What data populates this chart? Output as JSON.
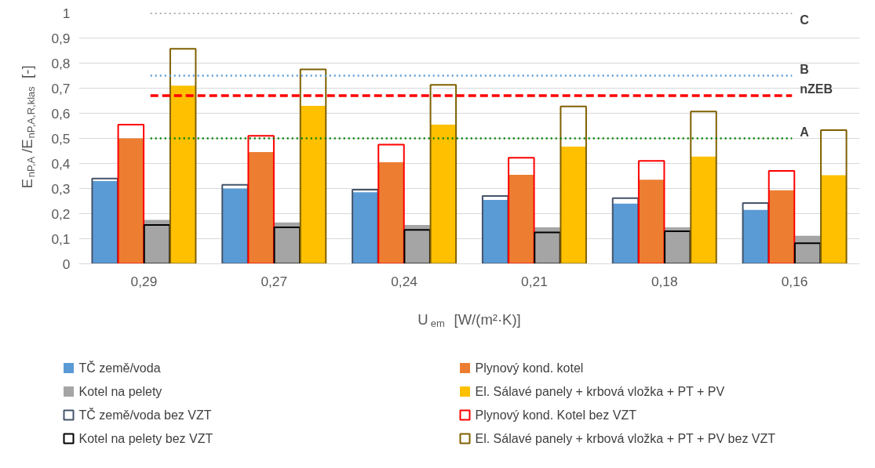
{
  "chart_data": {
    "type": "bar",
    "xlabel": "U$_{em}$ [W/(m²·K)]",
    "ylabel": "E$_{nP,A}$/E$_{nP,A,R,klas}$ [-]",
    "categories": [
      "0,29",
      "0,27",
      "0,24",
      "0,21",
      "0,18",
      "0,16"
    ],
    "series": [
      {
        "name": "TČ země/voda",
        "color": "#5b9bd5",
        "values": [
          0.33,
          0.3,
          0.285,
          0.255,
          0.24,
          0.215
        ]
      },
      {
        "name": "Plynový kond. kotel",
        "color": "#ed7d31",
        "values": [
          0.5,
          0.445,
          0.405,
          0.355,
          0.335,
          0.293
        ]
      },
      {
        "name": "Kotel na pelety",
        "color": "#a5a5a5",
        "values": [
          0.175,
          0.165,
          0.155,
          0.145,
          0.145,
          0.112
        ]
      },
      {
        "name": "El. Sálavé panely + krbová vložka + PT + PV",
        "color": "#ffc000",
        "values": [
          0.71,
          0.63,
          0.555,
          0.467,
          0.427,
          0.353
        ]
      },
      {
        "name": "TČ země/voda bez VZT",
        "color": "#44546a",
        "values": [
          0.34,
          0.315,
          0.295,
          0.27,
          0.262,
          0.242
        ]
      },
      {
        "name": "Plynový kond. Kotel bez VZT",
        "color": "#ff0000",
        "values": [
          0.555,
          0.51,
          0.475,
          0.423,
          0.41,
          0.37
        ]
      },
      {
        "name": "Kotel na pelety bez VZT",
        "color": "#000000",
        "values": [
          0.155,
          0.145,
          0.135,
          0.125,
          0.13,
          0.082
        ]
      },
      {
        "name": "El. Sálavé panely + krbová vložka + PT + PV bez VZT",
        "color": "#7f6000",
        "values": [
          0.857,
          0.775,
          0.713,
          0.627,
          0.607,
          0.533
        ]
      }
    ],
    "ylim": [
      0,
      1
    ],
    "yticks": [
      {
        "value": 0,
        "label": "0"
      },
      {
        "value": 0.1,
        "label": "0,1"
      },
      {
        "value": 0.2,
        "label": "0,2"
      },
      {
        "value": 0.3,
        "label": "0,3"
      },
      {
        "value": 0.4,
        "label": "0,4"
      },
      {
        "value": 0.5,
        "label": "0,5"
      },
      {
        "value": 0.6,
        "label": "0,6"
      },
      {
        "value": 0.7,
        "label": "0,7"
      },
      {
        "value": 0.8,
        "label": "0,8"
      },
      {
        "value": 0.9,
        "label": "0,9"
      },
      {
        "value": 1,
        "label": "1"
      }
    ],
    "ref_lines": [
      {
        "axis": "y",
        "value": 1,
        "label": "C",
        "color": "#7f7f7f",
        "line_style": "dotted"
      },
      {
        "axis": "y",
        "value": 0.75,
        "label": "B",
        "color": "#5b9bd5",
        "line_style": "dotted"
      },
      {
        "axis": "y",
        "value": 0.67,
        "label": "nZEB",
        "color": "#ff0000",
        "line_style": "dashed"
      },
      {
        "axis": "y",
        "value": 0.5,
        "label": "A",
        "color": "#008000",
        "line_style": "dotted"
      }
    ],
    "grid": "y",
    "legend": "bottom"
  }
}
